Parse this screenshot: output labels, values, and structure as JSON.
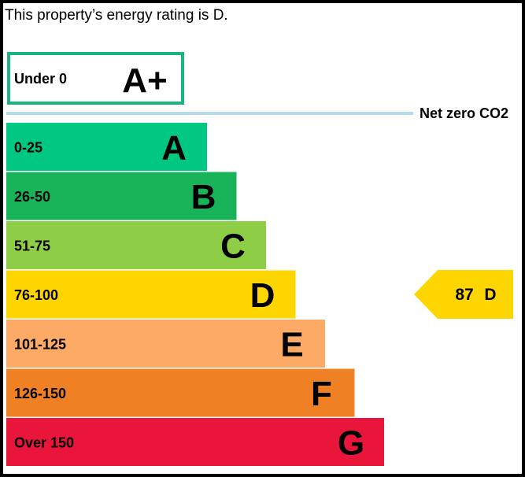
{
  "title": "This property’s energy rating is D.",
  "aplus": {
    "range": "Under 0",
    "letter": "A+",
    "border_color": "#1cb57e"
  },
  "netzero": {
    "label": "Net zero CO2",
    "line_color": "#b4dbe8"
  },
  "chart_data": {
    "type": "bar",
    "categories": [
      "A",
      "B",
      "C",
      "D",
      "E",
      "F",
      "G"
    ],
    "ranges": [
      "0-25",
      "26-50",
      "51-75",
      "76-100",
      "101-125",
      "126-150",
      "Over 150"
    ],
    "colors": [
      "#00c781",
      "#19b459",
      "#8dce46",
      "#ffd500",
      "#fcaa65",
      "#ef8023",
      "#e9153b"
    ],
    "current": {
      "rating": "D",
      "score": "87",
      "color": "#ffd500"
    }
  }
}
